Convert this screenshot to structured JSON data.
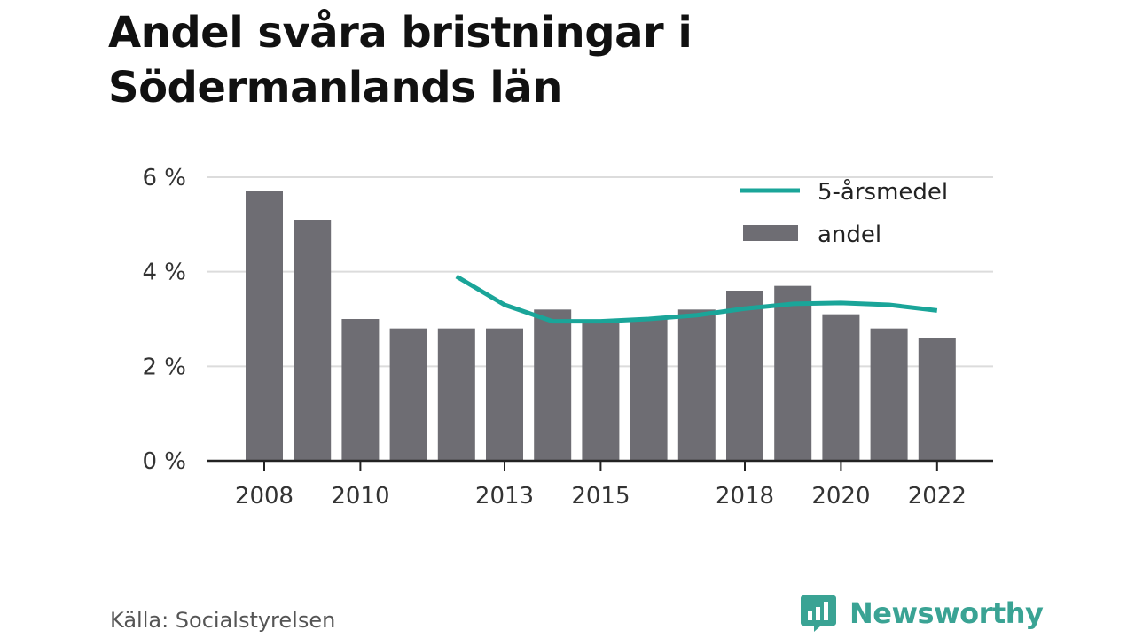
{
  "title": "Andel svåra bristningar i Södermanlands län",
  "source": "Källa: Socialstyrelsen",
  "brand": {
    "name": "Newsworthy",
    "color": "#3aa394"
  },
  "chart_data": {
    "type": "bar",
    "title": "Andel svåra bristningar i Södermanlands län",
    "xlabel": "",
    "ylabel": "",
    "ylim": [
      0,
      6
    ],
    "y_ticks": [
      0,
      2,
      4,
      6
    ],
    "y_tick_labels": [
      "0 %",
      "2 %",
      "4 %",
      "6 %"
    ],
    "x_ticks": [
      2008,
      2010,
      2013,
      2015,
      2018,
      2020,
      2022
    ],
    "x_tick_labels": [
      "2008",
      "2010",
      "2013",
      "2015",
      "2018",
      "2020",
      "2022"
    ],
    "grid": true,
    "legend_position": "top-right",
    "categories": [
      2008,
      2009,
      2010,
      2011,
      2012,
      2013,
      2014,
      2015,
      2016,
      2017,
      2018,
      2019,
      2020,
      2021,
      2022
    ],
    "series": [
      {
        "name": "andel",
        "type": "bar",
        "color": "#6e6d73",
        "values": [
          5.7,
          5.1,
          3.0,
          2.8,
          2.8,
          2.8,
          3.2,
          2.95,
          3.0,
          3.2,
          3.6,
          3.7,
          3.1,
          2.8,
          2.6
        ]
      },
      {
        "name": "5-årsmedel",
        "type": "line",
        "color": "#1aa599",
        "values": [
          null,
          null,
          null,
          null,
          3.9,
          3.3,
          2.95,
          2.95,
          3.0,
          3.08,
          3.22,
          3.32,
          3.34,
          3.3,
          3.18
        ]
      }
    ]
  }
}
